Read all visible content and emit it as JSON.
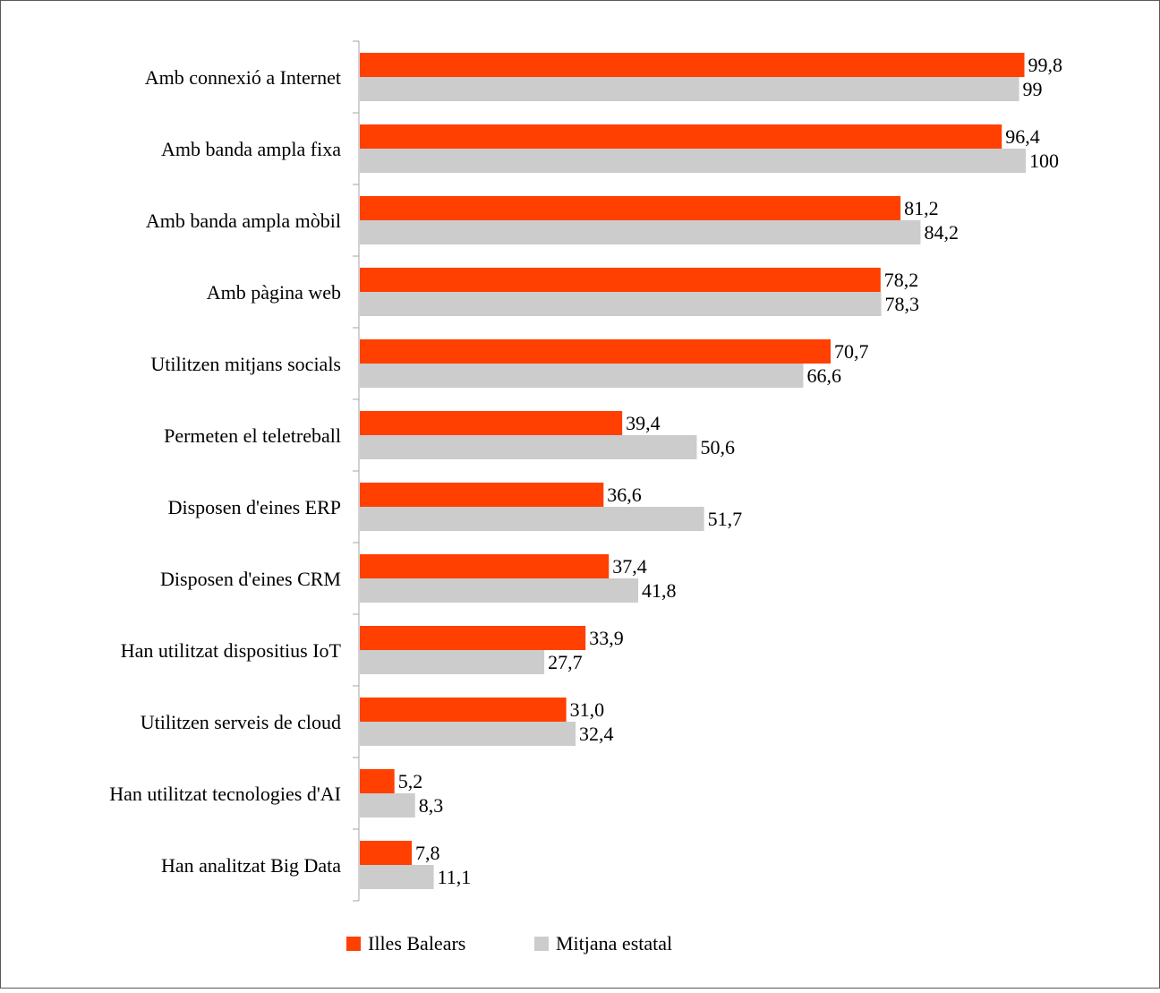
{
  "chart_data": {
    "type": "bar",
    "orientation": "horizontal",
    "title": "",
    "xlabel": "",
    "ylabel": "",
    "xlim": [
      0,
      100
    ],
    "grid": false,
    "legend_position": "bottom",
    "categories": [
      "Amb connexió a Internet",
      "Amb banda ampla fixa",
      "Amb banda ampla mòbil",
      "Amb pàgina web",
      "Utilitzen mitjans socials",
      "Permeten el teletreball",
      "Disposen d'eines ERP",
      "Disposen d'eines CRM",
      "Han utilitzat dispositius IoT",
      "Utilitzen serveis de cloud",
      "Han utilitzat tecnologies d'AI",
      "Han analitzat Big Data"
    ],
    "series": [
      {
        "name": "Illes Balears",
        "color": "#ff4000",
        "values": [
          99.8,
          96.4,
          81.2,
          78.2,
          70.7,
          39.4,
          36.6,
          37.4,
          33.9,
          31.0,
          5.2,
          7.8
        ],
        "labels": [
          "99,8",
          "96,4",
          "81,2",
          "78,2",
          "70,7",
          "39,4",
          "36,6",
          "37,4",
          "33,9",
          "31,0",
          "5,2",
          "7,8"
        ]
      },
      {
        "name": "Mitjana estatal",
        "color": "#cccccc",
        "values": [
          99,
          100,
          84.2,
          78.3,
          66.6,
          50.6,
          51.7,
          41.8,
          27.7,
          32.4,
          8.3,
          11.1
        ],
        "labels": [
          "99",
          "100",
          "84,2",
          "78,3",
          "66,6",
          "50,6",
          "51,7",
          "41,8",
          "27,7",
          "32,4",
          "8,3",
          "11,1"
        ]
      }
    ]
  }
}
